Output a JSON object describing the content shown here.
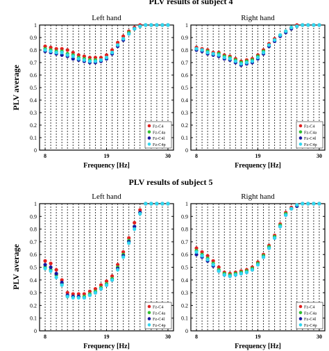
{
  "figure": {
    "ylabel": "PLV average",
    "xlabel": "Frequency [Hz]",
    "legend": [
      "Fz-C4",
      "Fz-C4a",
      "Fz-C4l",
      "Fz-C4p"
    ],
    "colors": {
      "Fz-C4": "#e02020",
      "Fz-C4a": "#30c030",
      "Fz-C4l": "#1818a0",
      "Fz-C4p": "#30d8f0"
    }
  },
  "chart_data": [
    {
      "type": "scatter",
      "group_title": "PLV results of subject 4",
      "title": "Left hand",
      "xlabel": "Frequency [Hz]",
      "ylabel": "PLV average",
      "xlim": [
        7,
        31
      ],
      "ylim": [
        0,
        1
      ],
      "xticks": [
        8,
        19,
        30
      ],
      "yticks": [
        0,
        0.1,
        0.2,
        0.3,
        0.4,
        0.5,
        0.6,
        0.7,
        0.8,
        0.9,
        1
      ],
      "x": [
        8,
        9,
        10,
        11,
        12,
        13,
        14,
        15,
        16,
        17,
        18,
        19,
        20,
        21,
        22,
        23,
        24,
        25,
        26,
        27,
        28,
        29,
        30
      ],
      "series": [
        {
          "name": "Fz-C4",
          "values": [
            0.83,
            0.82,
            0.81,
            0.81,
            0.8,
            0.78,
            0.76,
            0.75,
            0.74,
            0.74,
            0.74,
            0.76,
            0.8,
            0.86,
            0.91,
            0.95,
            0.98,
            1,
            1,
            1,
            1,
            1,
            1
          ]
        },
        {
          "name": "Fz-C4a",
          "values": [
            0.81,
            0.8,
            0.79,
            0.79,
            0.77,
            0.76,
            0.74,
            0.73,
            0.72,
            0.72,
            0.72,
            0.74,
            0.78,
            0.84,
            0.89,
            0.94,
            0.97,
            0.99,
            1,
            1,
            1,
            1,
            1
          ]
        },
        {
          "name": "Fz-C4l",
          "values": [
            0.79,
            0.78,
            0.77,
            0.76,
            0.75,
            0.73,
            0.72,
            0.71,
            0.7,
            0.7,
            0.71,
            0.73,
            0.77,
            0.83,
            0.88,
            0.93,
            0.97,
            0.99,
            1,
            1,
            1,
            1,
            1
          ]
        },
        {
          "name": "Fz-C4p",
          "values": [
            0.8,
            0.79,
            0.78,
            0.78,
            0.76,
            0.75,
            0.73,
            0.72,
            0.71,
            0.71,
            0.72,
            0.74,
            0.78,
            0.84,
            0.89,
            0.93,
            0.97,
            0.99,
            1,
            1,
            1,
            1,
            1
          ]
        }
      ]
    },
    {
      "type": "scatter",
      "group_title": "PLV results of subject 4",
      "title": "Right hand",
      "xlabel": "Frequency [Hz]",
      "ylabel": "PLV average",
      "xlim": [
        7,
        31
      ],
      "ylim": [
        0,
        1
      ],
      "xticks": [
        8,
        19,
        30
      ],
      "yticks": [
        0,
        0.1,
        0.2,
        0.3,
        0.4,
        0.5,
        0.6,
        0.7,
        0.8,
        0.9,
        1
      ],
      "x": [
        8,
        9,
        10,
        11,
        12,
        13,
        14,
        15,
        16,
        17,
        18,
        19,
        20,
        21,
        22,
        23,
        24,
        25,
        26,
        27,
        28,
        29,
        30
      ],
      "series": [
        {
          "name": "Fz-C4",
          "values": [
            0.82,
            0.81,
            0.8,
            0.78,
            0.78,
            0.76,
            0.75,
            0.73,
            0.71,
            0.72,
            0.73,
            0.76,
            0.8,
            0.85,
            0.89,
            0.92,
            0.95,
            0.98,
            1,
            1,
            1,
            1,
            1
          ]
        },
        {
          "name": "Fz-C4a",
          "values": [
            0.81,
            0.8,
            0.79,
            0.77,
            0.77,
            0.75,
            0.74,
            0.72,
            0.7,
            0.71,
            0.72,
            0.75,
            0.79,
            0.84,
            0.88,
            0.92,
            0.95,
            0.98,
            0.99,
            1,
            1,
            1,
            1
          ]
        },
        {
          "name": "Fz-C4l",
          "values": [
            0.8,
            0.79,
            0.77,
            0.76,
            0.75,
            0.73,
            0.72,
            0.7,
            0.68,
            0.69,
            0.7,
            0.73,
            0.77,
            0.83,
            0.87,
            0.91,
            0.94,
            0.97,
            0.99,
            1,
            1,
            1,
            1
          ]
        },
        {
          "name": "Fz-C4p",
          "values": [
            0.81,
            0.8,
            0.78,
            0.77,
            0.76,
            0.74,
            0.73,
            0.71,
            0.69,
            0.7,
            0.71,
            0.74,
            0.78,
            0.84,
            0.88,
            0.92,
            0.95,
            0.98,
            0.99,
            1,
            1,
            1,
            1
          ]
        }
      ]
    },
    {
      "type": "scatter",
      "group_title": "PLV results of subject 5",
      "title": "Left hand",
      "xlabel": "Frequency [Hz]",
      "ylabel": "PLV average",
      "xlim": [
        7,
        31
      ],
      "ylim": [
        0,
        1
      ],
      "xticks": [
        8,
        19,
        30
      ],
      "yticks": [
        0,
        0.1,
        0.2,
        0.3,
        0.4,
        0.5,
        0.6,
        0.7,
        0.8,
        0.9,
        1
      ],
      "x": [
        8,
        9,
        10,
        11,
        12,
        13,
        14,
        15,
        16,
        17,
        18,
        19,
        20,
        21,
        22,
        23,
        24,
        25,
        26,
        27,
        28,
        29,
        30
      ],
      "series": [
        {
          "name": "Fz-C4",
          "values": [
            0.55,
            0.53,
            0.48,
            0.4,
            0.3,
            0.29,
            0.29,
            0.29,
            0.31,
            0.33,
            0.36,
            0.39,
            0.43,
            0.52,
            0.62,
            0.73,
            0.85,
            0.95,
            1,
            1,
            1,
            1,
            1
          ]
        },
        {
          "name": "Fz-C4a",
          "values": [
            0.5,
            0.48,
            0.44,
            0.37,
            0.27,
            0.27,
            0.27,
            0.27,
            0.29,
            0.31,
            0.34,
            0.37,
            0.41,
            0.5,
            0.6,
            0.71,
            0.82,
            0.93,
            1,
            1,
            1,
            1,
            1
          ]
        },
        {
          "name": "Fz-C4l",
          "values": [
            0.52,
            0.5,
            0.45,
            0.38,
            0.28,
            0.27,
            0.27,
            0.26,
            0.28,
            0.3,
            0.33,
            0.36,
            0.4,
            0.49,
            0.59,
            0.7,
            0.82,
            0.93,
            1,
            1,
            1,
            1,
            1
          ]
        },
        {
          "name": "Fz-C4p",
          "values": [
            0.49,
            0.47,
            0.42,
            0.36,
            0.27,
            0.26,
            0.26,
            0.26,
            0.28,
            0.3,
            0.33,
            0.36,
            0.4,
            0.48,
            0.58,
            0.69,
            0.8,
            0.92,
            1,
            1,
            1,
            1,
            1
          ]
        }
      ]
    },
    {
      "type": "scatter",
      "group_title": "PLV results of subject 5",
      "title": "Right hand",
      "xlabel": "Frequency [Hz]",
      "ylabel": "PLV average",
      "xlim": [
        7,
        31
      ],
      "ylim": [
        0,
        1
      ],
      "xticks": [
        8,
        19,
        30
      ],
      "yticks": [
        0,
        0.1,
        0.2,
        0.3,
        0.4,
        0.5,
        0.6,
        0.7,
        0.8,
        0.9,
        1
      ],
      "x": [
        8,
        9,
        10,
        11,
        12,
        13,
        14,
        15,
        16,
        17,
        18,
        19,
        20,
        21,
        22,
        23,
        24,
        25,
        26,
        27,
        28,
        29,
        30
      ],
      "series": [
        {
          "name": "Fz-C4",
          "values": [
            0.65,
            0.62,
            0.59,
            0.55,
            0.5,
            0.46,
            0.45,
            0.46,
            0.47,
            0.48,
            0.5,
            0.54,
            0.6,
            0.67,
            0.75,
            0.84,
            0.93,
            0.97,
            0.99,
            1,
            1,
            1,
            1
          ]
        },
        {
          "name": "Fz-C4a",
          "values": [
            0.63,
            0.6,
            0.57,
            0.53,
            0.48,
            0.45,
            0.44,
            0.45,
            0.46,
            0.47,
            0.49,
            0.53,
            0.59,
            0.66,
            0.74,
            0.83,
            0.92,
            0.96,
            0.98,
            1,
            1,
            1,
            1
          ]
        },
        {
          "name": "Fz-C4l",
          "values": [
            0.6,
            0.58,
            0.55,
            0.51,
            0.47,
            0.44,
            0.43,
            0.44,
            0.45,
            0.46,
            0.48,
            0.52,
            0.58,
            0.65,
            0.73,
            0.82,
            0.91,
            0.96,
            0.98,
            1,
            1,
            1,
            1
          ]
        },
        {
          "name": "Fz-C4p",
          "values": [
            0.62,
            0.59,
            0.56,
            0.52,
            0.47,
            0.44,
            0.43,
            0.44,
            0.45,
            0.46,
            0.48,
            0.52,
            0.58,
            0.65,
            0.73,
            0.82,
            0.91,
            0.96,
            0.99,
            1,
            1,
            1,
            1
          ]
        }
      ]
    }
  ]
}
